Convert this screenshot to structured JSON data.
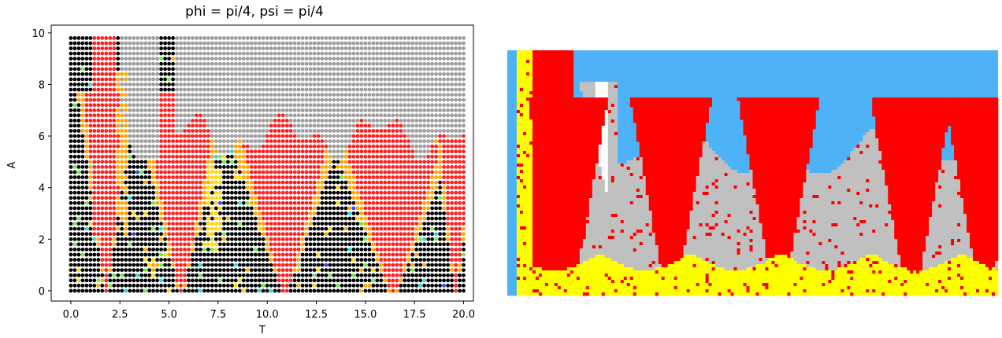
{
  "chart_data": [
    {
      "type": "scatter",
      "title": "phi = pi/4, psi = pi/4",
      "xlabel": "T",
      "ylabel": "A",
      "xlim": [
        -1,
        20.5
      ],
      "ylim": [
        -0.4,
        10.3
      ],
      "xticks": [
        0.0,
        2.5,
        5.0,
        7.5,
        10.0,
        12.5,
        15.0,
        17.5,
        20.0
      ],
      "xtick_labels": [
        "0.0",
        "2.5",
        "5.0",
        "7.5",
        "10.0",
        "12.5",
        "15.0",
        "17.5",
        "20.0"
      ],
      "yticks": [
        0,
        2,
        4,
        6,
        8,
        10
      ],
      "ytick_labels": [
        "0",
        "2",
        "4",
        "6",
        "8",
        "10"
      ],
      "grid": false,
      "legend": "none",
      "sampling": {
        "x_start": 0,
        "x_end": 20,
        "x_step": 0.2,
        "y_start": 0,
        "y_end": 9.9,
        "y_step": 0.2
      },
      "series": [
        {
          "color": "#000000",
          "region": "background black points (default)"
        },
        {
          "color": "#9e9e9e",
          "region": "upper band above the red tongues"
        },
        {
          "color": "#ff2020",
          "region": "V-shaped tongues centered near T = 1.5, 5.5, 11, 16.5, 19.5"
        },
        {
          "color": "#ffa500",
          "region": "edges of the tongues"
        },
        {
          "color": "#ffd700",
          "region": "narrow bands near T = 7.3"
        },
        {
          "color": "#66ee44",
          "region": "scattered points"
        },
        {
          "color": "#22dddd",
          "region": "scattered points"
        },
        {
          "color": "#3344ff",
          "region": "scattered points"
        }
      ]
    },
    {
      "type": "heatmap",
      "axes": "none",
      "palette": {
        "yellow": "#ffff00",
        "red": "#ff0000",
        "gray": "#c0c0c0",
        "sky": "#4db2f7",
        "white": "#ffffff",
        "blue": "#0000ff"
      }
    }
  ]
}
